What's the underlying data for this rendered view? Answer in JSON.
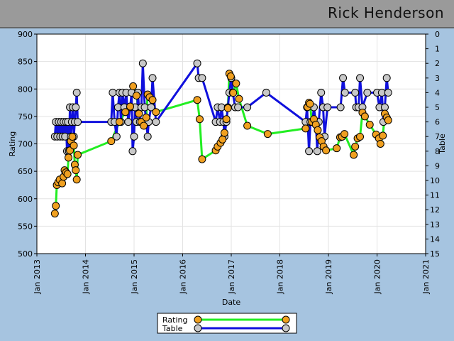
{
  "title": "Rick Henderson",
  "colors": {
    "background": "#a6c4e0",
    "plot_bg": "#ffffff",
    "rating_line": "#22ee22",
    "rating_marker": "#f0a020",
    "table_line": "#1010dd",
    "table_marker": "#c8c8c8"
  },
  "chart_data": {
    "type": "line",
    "xlabel": "Date",
    "ylabel": "Rating",
    "y2label": "Table",
    "ylim": [
      500,
      900
    ],
    "y2lim": [
      15,
      0
    ],
    "xlim": [
      2013,
      2021
    ],
    "yticks": [
      500,
      550,
      600,
      650,
      700,
      750,
      800,
      850,
      900
    ],
    "y2ticks": [
      0,
      1,
      2,
      3,
      4,
      5,
      6,
      7,
      8,
      9,
      10,
      11,
      12,
      13,
      14,
      15
    ],
    "xticks": [
      {
        "x": 2013,
        "label": "Jan 2013"
      },
      {
        "x": 2014,
        "label": "Jan 2014"
      },
      {
        "x": 2015,
        "label": "Jan 2015"
      },
      {
        "x": 2016,
        "label": "Jan 2016"
      },
      {
        "x": 2017,
        "label": "Jan 2017"
      },
      {
        "x": 2018,
        "label": "Jan 2018"
      },
      {
        "x": 2019,
        "label": "Jan 2019"
      },
      {
        "x": 2020,
        "label": "Jan 2020"
      },
      {
        "x": 2021,
        "label": "Jan 2021"
      }
    ],
    "legend": [
      "Rating",
      "Table"
    ],
    "series": [
      {
        "name": "Rating",
        "axis": "left",
        "points": [
          [
            2013.37,
            573
          ],
          [
            2013.39,
            587
          ],
          [
            2013.41,
            625
          ],
          [
            2013.44,
            630
          ],
          [
            2013.47,
            635
          ],
          [
            2013.52,
            628
          ],
          [
            2013.55,
            640
          ],
          [
            2013.57,
            652
          ],
          [
            2013.6,
            648
          ],
          [
            2013.63,
            645
          ],
          [
            2013.65,
            675
          ],
          [
            2013.68,
            688
          ],
          [
            2013.7,
            705
          ],
          [
            2013.73,
            713
          ],
          [
            2013.76,
            697
          ],
          [
            2013.78,
            662
          ],
          [
            2013.8,
            652
          ],
          [
            2013.82,
            635
          ],
          [
            2013.84,
            680
          ],
          [
            2014.53,
            705
          ],
          [
            2014.7,
            740
          ],
          [
            2014.82,
            758
          ],
          [
            2014.92,
            768
          ],
          [
            2014.98,
            805
          ],
          [
            2015.05,
            788
          ],
          [
            2015.1,
            755
          ],
          [
            2015.15,
            740
          ],
          [
            2015.2,
            733
          ],
          [
            2015.25,
            748
          ],
          [
            2015.28,
            790
          ],
          [
            2015.32,
            785
          ],
          [
            2015.38,
            780
          ],
          [
            2015.45,
            758
          ],
          [
            2016.3,
            780
          ],
          [
            2016.35,
            745
          ],
          [
            2016.4,
            672
          ],
          [
            2016.68,
            688
          ],
          [
            2016.72,
            695
          ],
          [
            2016.78,
            702
          ],
          [
            2016.82,
            708
          ],
          [
            2016.86,
            720
          ],
          [
            2016.9,
            745
          ],
          [
            2016.93,
            765
          ],
          [
            2016.96,
            828
          ],
          [
            2016.99,
            823
          ],
          [
            2017.04,
            793
          ],
          [
            2017.1,
            810
          ],
          [
            2017.16,
            782
          ],
          [
            2017.33,
            733
          ],
          [
            2017.75,
            718
          ],
          [
            2018.53,
            728
          ],
          [
            2018.57,
            767
          ],
          [
            2018.6,
            775
          ],
          [
            2018.62,
            773
          ],
          [
            2018.66,
            740
          ],
          [
            2018.7,
            745
          ],
          [
            2018.74,
            735
          ],
          [
            2018.78,
            725
          ],
          [
            2018.82,
            712
          ],
          [
            2018.86,
            705
          ],
          [
            2018.9,
            695
          ],
          [
            2018.95,
            688
          ],
          [
            2019.17,
            692
          ],
          [
            2019.24,
            712
          ],
          [
            2019.28,
            713
          ],
          [
            2019.33,
            718
          ],
          [
            2019.52,
            680
          ],
          [
            2019.55,
            695
          ],
          [
            2019.6,
            710
          ],
          [
            2019.65,
            713
          ],
          [
            2019.7,
            757
          ],
          [
            2019.75,
            750
          ],
          [
            2019.85,
            735
          ],
          [
            2019.98,
            717
          ],
          [
            2020.04,
            710
          ],
          [
            2020.07,
            700
          ],
          [
            2020.12,
            715
          ],
          [
            2020.16,
            755
          ],
          [
            2020.2,
            748
          ],
          [
            2020.23,
            743
          ]
        ]
      },
      {
        "name": "Table",
        "axis": "right",
        "points": [
          [
            2013.37,
            7
          ],
          [
            2013.39,
            6
          ],
          [
            2013.42,
            7
          ],
          [
            2013.45,
            6
          ],
          [
            2013.48,
            7
          ],
          [
            2013.5,
            6
          ],
          [
            2013.53,
            7
          ],
          [
            2013.55,
            6
          ],
          [
            2013.58,
            7
          ],
          [
            2013.6,
            6
          ],
          [
            2013.62,
            8
          ],
          [
            2013.64,
            6
          ],
          [
            2013.66,
            8
          ],
          [
            2013.68,
            5
          ],
          [
            2013.7,
            7
          ],
          [
            2013.72,
            6
          ],
          [
            2013.74,
            5
          ],
          [
            2013.76,
            7
          ],
          [
            2013.78,
            6
          ],
          [
            2013.8,
            5
          ],
          [
            2013.82,
            4
          ],
          [
            2013.84,
            6
          ],
          [
            2014.53,
            6
          ],
          [
            2014.56,
            4
          ],
          [
            2014.6,
            6
          ],
          [
            2014.64,
            7
          ],
          [
            2014.67,
            5
          ],
          [
            2014.7,
            4
          ],
          [
            2014.73,
            6
          ],
          [
            2014.76,
            4
          ],
          [
            2014.8,
            5
          ],
          [
            2014.84,
            4
          ],
          [
            2014.88,
            6
          ],
          [
            2014.92,
            5
          ],
          [
            2014.95,
            4
          ],
          [
            2014.97,
            8
          ],
          [
            2015.0,
            7
          ],
          [
            2015.02,
            5
          ],
          [
            2015.05,
            6
          ],
          [
            2015.08,
            4
          ],
          [
            2015.12,
            6
          ],
          [
            2015.15,
            5
          ],
          [
            2015.18,
            2
          ],
          [
            2015.22,
            5
          ],
          [
            2015.25,
            6
          ],
          [
            2015.28,
            7
          ],
          [
            2015.3,
            6
          ],
          [
            2015.35,
            5
          ],
          [
            2015.38,
            3
          ],
          [
            2015.45,
            6
          ],
          [
            2016.3,
            2
          ],
          [
            2016.33,
            3
          ],
          [
            2016.4,
            3
          ],
          [
            2016.68,
            6
          ],
          [
            2016.72,
            5
          ],
          [
            2016.77,
            6
          ],
          [
            2016.8,
            5
          ],
          [
            2016.84,
            6
          ],
          [
            2016.86,
            7
          ],
          [
            2016.9,
            6
          ],
          [
            2016.93,
            5
          ],
          [
            2016.96,
            4
          ],
          [
            2017.0,
            3
          ],
          [
            2017.03,
            4
          ],
          [
            2017.08,
            5
          ],
          [
            2017.14,
            5
          ],
          [
            2017.33,
            5
          ],
          [
            2017.72,
            4
          ],
          [
            2018.53,
            6
          ],
          [
            2018.56,
            5
          ],
          [
            2018.6,
            8
          ],
          [
            2018.63,
            6
          ],
          [
            2018.67,
            6
          ],
          [
            2018.7,
            5
          ],
          [
            2018.74,
            6
          ],
          [
            2018.77,
            8
          ],
          [
            2018.8,
            6
          ],
          [
            2018.85,
            4
          ],
          [
            2018.89,
            5
          ],
          [
            2018.92,
            7
          ],
          [
            2018.98,
            5
          ],
          [
            2019.25,
            5
          ],
          [
            2019.3,
            3
          ],
          [
            2019.34,
            4
          ],
          [
            2019.55,
            4
          ],
          [
            2019.57,
            5
          ],
          [
            2019.62,
            5
          ],
          [
            2019.65,
            3
          ],
          [
            2019.7,
            5
          ],
          [
            2019.8,
            4
          ],
          [
            2020.0,
            4
          ],
          [
            2020.05,
            5
          ],
          [
            2020.1,
            4
          ],
          [
            2020.13,
            6
          ],
          [
            2020.16,
            5
          ],
          [
            2020.2,
            3
          ],
          [
            2020.23,
            4
          ]
        ]
      }
    ]
  }
}
